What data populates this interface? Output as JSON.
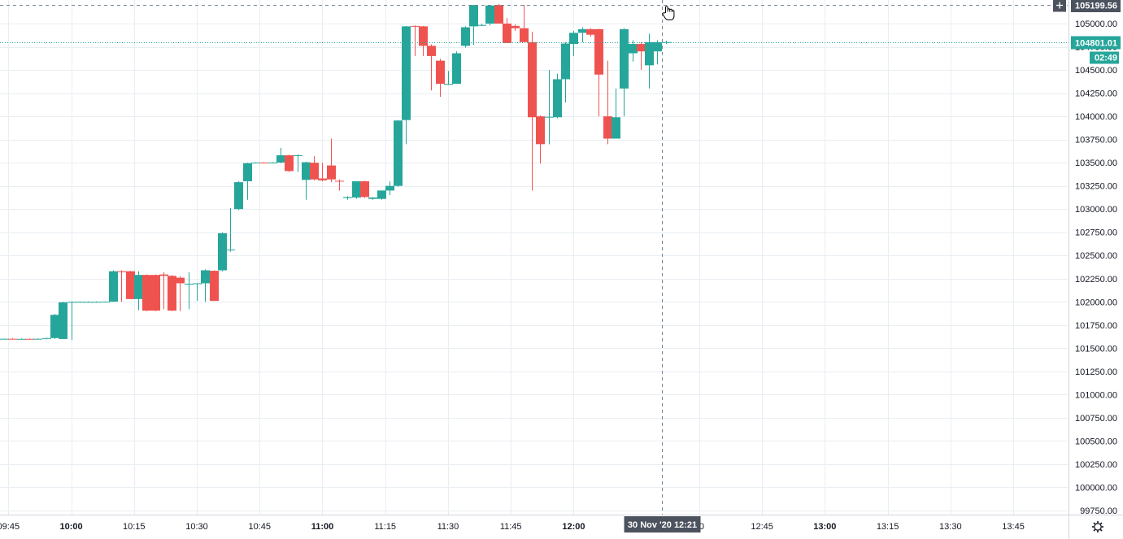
{
  "chart_data": {
    "type": "candlestick",
    "interval_minutes": 2,
    "colors": {
      "up": "#26a69a",
      "down": "#ef5350",
      "grid": "#e9eef3",
      "axis_text": "#131722",
      "last_price": "#26a69a",
      "crosshair": "#758696",
      "crosshair_label_bg": "#4c525e"
    },
    "y_axis": {
      "range": [
        99700,
        105280
      ],
      "ticks": [
        {
          "v": 99750,
          "label": "99750.00"
        },
        {
          "v": 100000,
          "label": "100000.00"
        },
        {
          "v": 100250,
          "label": "100250.00"
        },
        {
          "v": 100500,
          "label": "100500.00"
        },
        {
          "v": 100750,
          "label": "100750.00"
        },
        {
          "v": 101000,
          "label": "101000.00"
        },
        {
          "v": 101250,
          "label": "101250.00"
        },
        {
          "v": 101500,
          "label": "101500.00"
        },
        {
          "v": 101750,
          "label": "101750.00"
        },
        {
          "v": 102000,
          "label": "102000.00"
        },
        {
          "v": 102250,
          "label": "102250.00"
        },
        {
          "v": 102500,
          "label": "102500.00"
        },
        {
          "v": 102750,
          "label": "102750.00"
        },
        {
          "v": 103000,
          "label": "103000.00"
        },
        {
          "v": 103250,
          "label": "103250.00"
        },
        {
          "v": 103500,
          "label": "103500.00"
        },
        {
          "v": 103750,
          "label": "103750.00"
        },
        {
          "v": 104000,
          "label": "104000.00"
        },
        {
          "v": 104250,
          "label": "104250.00"
        },
        {
          "v": 104500,
          "label": "104500.00"
        },
        {
          "v": 104750,
          "label": "104750.00"
        },
        {
          "v": 105000,
          "label": "105000.00"
        }
      ]
    },
    "x_axis": {
      "range": [
        "09:43",
        "13:58"
      ],
      "ticks": [
        {
          "t": "09:45",
          "label": "09:45"
        },
        {
          "t": "10:00",
          "label": "10:00",
          "bold": true
        },
        {
          "t": "10:15",
          "label": "10:15"
        },
        {
          "t": "10:30",
          "label": "10:30"
        },
        {
          "t": "10:45",
          "label": "10:45"
        },
        {
          "t": "11:00",
          "label": "11:00",
          "bold": true
        },
        {
          "t": "11:15",
          "label": "11:15"
        },
        {
          "t": "11:30",
          "label": "11:30"
        },
        {
          "t": "11:45",
          "label": "11:45"
        },
        {
          "t": "12:00",
          "label": "12:00",
          "bold": true
        },
        {
          "t": "12:30",
          "label": "30"
        },
        {
          "t": "12:45",
          "label": "12:45"
        },
        {
          "t": "13:00",
          "label": "13:00",
          "bold": true
        },
        {
          "t": "13:15",
          "label": "13:15"
        },
        {
          "t": "13:30",
          "label": "13:30"
        },
        {
          "t": "13:45",
          "label": "13:45"
        }
      ]
    },
    "candles": [
      {
        "t": "09:44",
        "o": 101600,
        "h": 101605,
        "l": 101595,
        "c": 101602
      },
      {
        "t": "09:46",
        "o": 101602,
        "h": 101608,
        "l": 101596,
        "c": 101600
      },
      {
        "t": "09:48",
        "o": 101600,
        "h": 101606,
        "l": 101594,
        "c": 101601
      },
      {
        "t": "09:50",
        "o": 101601,
        "h": 101606,
        "l": 101595,
        "c": 101600
      },
      {
        "t": "09:52",
        "o": 101600,
        "h": 101606,
        "l": 101595,
        "c": 101602
      },
      {
        "t": "09:54",
        "o": 101602,
        "h": 101610,
        "l": 101596,
        "c": 101610
      },
      {
        "t": "09:56",
        "o": 101610,
        "h": 101870,
        "l": 101600,
        "c": 101860
      },
      {
        "t": "09:58",
        "o": 101600,
        "h": 102000,
        "l": 101600,
        "c": 101995
      },
      {
        "t": "10:00",
        "o": 101995,
        "h": 102005,
        "l": 101590,
        "c": 102000
      },
      {
        "t": "10:02",
        "o": 102000,
        "h": 102005,
        "l": 101995,
        "c": 102000
      },
      {
        "t": "10:04",
        "o": 102000,
        "h": 102005,
        "l": 101995,
        "c": 102000
      },
      {
        "t": "10:06",
        "o": 102000,
        "h": 102005,
        "l": 101995,
        "c": 102000
      },
      {
        "t": "10:08",
        "o": 102000,
        "h": 102005,
        "l": 101995,
        "c": 102002
      },
      {
        "t": "10:10",
        "o": 102002,
        "h": 102340,
        "l": 102000,
        "c": 102330
      },
      {
        "t": "10:12",
        "o": 102330,
        "h": 102340,
        "l": 102000,
        "c": 102320
      },
      {
        "t": "10:14",
        "o": 102330,
        "h": 102335,
        "l": 102030,
        "c": 102030
      },
      {
        "t": "10:16",
        "o": 102030,
        "h": 102330,
        "l": 101910,
        "c": 102290
      },
      {
        "t": "10:18",
        "o": 102290,
        "h": 102295,
        "l": 101900,
        "c": 101905
      },
      {
        "t": "10:20",
        "o": 102290,
        "h": 102295,
        "l": 101900,
        "c": 101905
      },
      {
        "t": "10:22",
        "o": 102295,
        "h": 102320,
        "l": 101920,
        "c": 102280
      },
      {
        "t": "10:24",
        "o": 102280,
        "h": 102290,
        "l": 101900,
        "c": 101905
      },
      {
        "t": "10:26",
        "o": 102260,
        "h": 102275,
        "l": 101900,
        "c": 102200
      },
      {
        "t": "10:28",
        "o": 102190,
        "h": 102320,
        "l": 101920,
        "c": 102195
      },
      {
        "t": "10:30",
        "o": 102195,
        "h": 102200,
        "l": 102010,
        "c": 102200
      },
      {
        "t": "10:32",
        "o": 102200,
        "h": 102350,
        "l": 102000,
        "c": 102340
      },
      {
        "t": "10:34",
        "o": 102335,
        "h": 102340,
        "l": 102010,
        "c": 102010
      },
      {
        "t": "10:36",
        "o": 102340,
        "h": 102750,
        "l": 102330,
        "c": 102740
      },
      {
        "t": "10:38",
        "o": 102560,
        "h": 103010,
        "l": 102540,
        "c": 102565
      },
      {
        "t": "10:40",
        "o": 103000,
        "h": 103300,
        "l": 102990,
        "c": 103290
      },
      {
        "t": "10:42",
        "o": 103300,
        "h": 103500,
        "l": 103100,
        "c": 103495
      },
      {
        "t": "10:44",
        "o": 103500,
        "h": 103505,
        "l": 103495,
        "c": 103502
      },
      {
        "t": "10:46",
        "o": 103502,
        "h": 103506,
        "l": 103496,
        "c": 103500
      },
      {
        "t": "10:48",
        "o": 103500,
        "h": 103506,
        "l": 103496,
        "c": 103502
      },
      {
        "t": "10:50",
        "o": 103502,
        "h": 103660,
        "l": 103495,
        "c": 103580
      },
      {
        "t": "10:52",
        "o": 103580,
        "h": 103585,
        "l": 103400,
        "c": 103410
      },
      {
        "t": "10:54",
        "o": 103580,
        "h": 103590,
        "l": 103400,
        "c": 103580
      },
      {
        "t": "10:56",
        "o": 103315,
        "h": 103510,
        "l": 103100,
        "c": 103505
      },
      {
        "t": "10:58",
        "o": 103500,
        "h": 103570,
        "l": 103310,
        "c": 103320
      },
      {
        "t": "11:00",
        "o": 103330,
        "h": 103500,
        "l": 103300,
        "c": 103310
      },
      {
        "t": "11:02",
        "o": 103470,
        "h": 103760,
        "l": 103290,
        "c": 103320
      },
      {
        "t": "11:04",
        "o": 103305,
        "h": 103320,
        "l": 103200,
        "c": 103300
      },
      {
        "t": "11:06",
        "o": 103120,
        "h": 103140,
        "l": 103100,
        "c": 103130
      },
      {
        "t": "11:08",
        "o": 103125,
        "h": 103300,
        "l": 103110,
        "c": 103300
      },
      {
        "t": "11:10",
        "o": 103300,
        "h": 103305,
        "l": 103120,
        "c": 103130
      },
      {
        "t": "11:12",
        "o": 103110,
        "h": 103130,
        "l": 103100,
        "c": 103125
      },
      {
        "t": "11:14",
        "o": 103110,
        "h": 103200,
        "l": 103100,
        "c": 103200
      },
      {
        "t": "11:16",
        "o": 103200,
        "h": 103300,
        "l": 103150,
        "c": 103250
      },
      {
        "t": "11:18",
        "o": 103250,
        "h": 103960,
        "l": 103240,
        "c": 103955
      },
      {
        "t": "11:20",
        "o": 103960,
        "h": 104975,
        "l": 103700,
        "c": 104970
      },
      {
        "t": "11:22",
        "o": 104975,
        "h": 104980,
        "l": 104650,
        "c": 104970
      },
      {
        "t": "11:24",
        "o": 104970,
        "h": 104975,
        "l": 104650,
        "c": 104760
      },
      {
        "t": "11:26",
        "o": 104760,
        "h": 104775,
        "l": 104280,
        "c": 104650
      },
      {
        "t": "11:28",
        "o": 104600,
        "h": 104620,
        "l": 104210,
        "c": 104350
      },
      {
        "t": "11:30",
        "o": 104340,
        "h": 104490,
        "l": 104340,
        "c": 104350
      },
      {
        "t": "11:32",
        "o": 104350,
        "h": 104700,
        "l": 104350,
        "c": 104680
      },
      {
        "t": "11:34",
        "o": 104760,
        "h": 104970,
        "l": 104740,
        "c": 104960
      },
      {
        "t": "11:36",
        "o": 104970,
        "h": 105200,
        "l": 104770,
        "c": 105200
      },
      {
        "t": "11:38",
        "o": 104980,
        "h": 105000,
        "l": 104975,
        "c": 104985
      },
      {
        "t": "11:40",
        "o": 105000,
        "h": 105200,
        "l": 104980,
        "c": 105195
      },
      {
        "t": "11:42",
        "o": 105200,
        "h": 105210,
        "l": 105000,
        "c": 105000
      },
      {
        "t": "11:44",
        "o": 105000,
        "h": 105060,
        "l": 104790,
        "c": 104790
      },
      {
        "t": "11:46",
        "o": 104975,
        "h": 104990,
        "l": 104920,
        "c": 104950
      },
      {
        "t": "11:48",
        "o": 104950,
        "h": 105200,
        "l": 104800,
        "c": 104800
      },
      {
        "t": "11:50",
        "o": 104800,
        "h": 104910,
        "l": 103200,
        "c": 103990
      },
      {
        "t": "11:52",
        "o": 104000,
        "h": 104010,
        "l": 103490,
        "c": 103700
      },
      {
        "t": "11:54",
        "o": 103990,
        "h": 104500,
        "l": 103700,
        "c": 103995
      },
      {
        "t": "11:56",
        "o": 103990,
        "h": 104460,
        "l": 103980,
        "c": 104400
      },
      {
        "t": "11:58",
        "o": 104400,
        "h": 104800,
        "l": 104150,
        "c": 104785
      },
      {
        "t": "12:00",
        "o": 104780,
        "h": 104920,
        "l": 104650,
        "c": 104900
      },
      {
        "t": "12:02",
        "o": 104900,
        "h": 104960,
        "l": 104800,
        "c": 104940
      },
      {
        "t": "12:04",
        "o": 104940,
        "h": 104950,
        "l": 104860,
        "c": 104880
      },
      {
        "t": "12:06",
        "o": 104940,
        "h": 104945,
        "l": 104000,
        "c": 104450
      },
      {
        "t": "12:08",
        "o": 104000,
        "h": 104600,
        "l": 103700,
        "c": 103760
      },
      {
        "t": "12:10",
        "o": 103760,
        "h": 104300,
        "l": 103770,
        "c": 103990
      },
      {
        "t": "12:12",
        "o": 104300,
        "h": 104950,
        "l": 104000,
        "c": 104940
      },
      {
        "t": "12:14",
        "o": 104680,
        "h": 104820,
        "l": 104590,
        "c": 104780
      },
      {
        "t": "12:16",
        "o": 104780,
        "h": 104800,
        "l": 104500,
        "c": 104700
      },
      {
        "t": "12:18",
        "o": 104550,
        "h": 104890,
        "l": 104300,
        "c": 104800
      },
      {
        "t": "12:20",
        "o": 104700,
        "h": 104820,
        "l": 104560,
        "c": 104800
      },
      {
        "t": "12:22",
        "o": 104800,
        "h": 104815,
        "l": 104780,
        "c": 104801.01
      }
    ],
    "last_price": {
      "value": 104801.01,
      "label": "104801.01",
      "countdown": "02:49"
    },
    "crosshair": {
      "t": "12:21",
      "price_label": "105199.56",
      "price": 105199.56,
      "time_label": "30 Nov '20   12:21"
    },
    "grid": true,
    "legend": "none"
  },
  "icons": {
    "crosshair_plus": "plus-icon",
    "settings": "gear-icon"
  }
}
